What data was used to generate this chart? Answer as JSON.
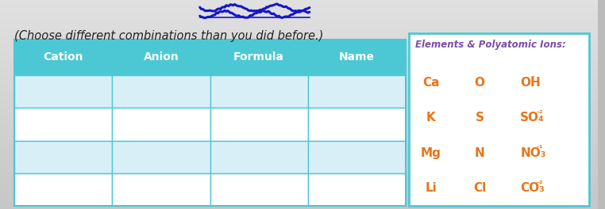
{
  "title_italic": "(Choose different combinations than you did before.)",
  "table_headers": [
    "Cation",
    "Anion",
    "Formula",
    "Name"
  ],
  "header_bg": "#4CC8D4",
  "header_text_color": "#FFFFFF",
  "row_colors_alt": [
    "#D9EFF7",
    "#FFFFFF",
    "#D9EFF7",
    "#FFFFFF"
  ],
  "table_border_color": "#4CC8D4",
  "num_rows": 4,
  "box_title": "Elements & Polyatomic Ions:",
  "box_title_color": "#7B4EA8",
  "box_border_color": "#4CC8D4",
  "elements_color": "#E8751A",
  "elements_col1": [
    "Ca",
    "K",
    "Mg",
    "Li"
  ],
  "elements_col2": [
    "O",
    "S",
    "N",
    "Cl"
  ],
  "scratch_color": "#1515CC",
  "bg_color": "#BBBBBB",
  "font_size_title": 10.5,
  "font_size_header": 10,
  "font_size_elements": 11
}
